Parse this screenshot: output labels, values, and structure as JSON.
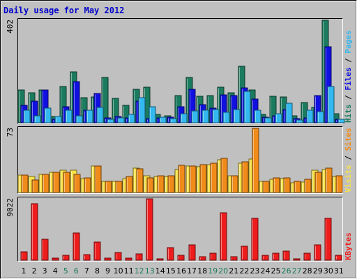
{
  "chart_data": {
    "type": "bar",
    "title": "Daily usage for May 2012",
    "categories": [
      "1",
      "2",
      "3",
      "4",
      "5",
      "6",
      "7",
      "8",
      "9",
      "10",
      "11",
      "12",
      "13",
      "14",
      "15",
      "16",
      "17",
      "18",
      "19",
      "20",
      "21",
      "22",
      "23",
      "24",
      "25",
      "26",
      "27",
      "28",
      "29",
      "30",
      "31"
    ],
    "weekend_days": [
      "5",
      "6",
      "12",
      "13",
      "19",
      "20",
      "26",
      "27"
    ],
    "panels": [
      {
        "name": "hits-files-pages",
        "ymax_label": "402",
        "ylim": [
          0,
          402
        ],
        "series": [
          {
            "name": "Hits",
            "color": "#1b7b5e",
            "values": [
              128,
              118,
              128,
              24,
              142,
              200,
              98,
              102,
              178,
              96,
              68,
              132,
              140,
              34,
              28,
              108,
              178,
              104,
              106,
              140,
              118,
              222,
              128,
              34,
              104,
              100,
              26,
              78,
              60,
              402,
              36
            ]
          },
          {
            "name": "Files",
            "color": "#1010e0",
            "values": [
              68,
              86,
              128,
              14,
              64,
              162,
              48,
              116,
              18,
              24,
              20,
              84,
              16,
              20,
              22,
              62,
              132,
              70,
              58,
              110,
              106,
              136,
              94,
              22,
              26,
              52,
              16,
              18,
              108,
              298,
              14
            ]
          },
          {
            "name": "Pages",
            "color": "#33b8f0",
            "values": [
              50,
              28,
              58,
              24,
              48,
              28,
              48,
              60,
              14,
              18,
              32,
              98,
              62,
              22,
              16,
              36,
              46,
              50,
              52,
              42,
              52,
              124,
              50,
              18,
              36,
              76,
              12,
              50,
              44,
              142,
              14
            ]
          }
        ],
        "right_labels": [
          {
            "text": "Hits",
            "color": "#1b7b5e"
          },
          {
            "text": "Files",
            "color": "#1010e0"
          },
          {
            "text": "Pages",
            "color": "#33b8f0"
          }
        ]
      },
      {
        "name": "visits-sites",
        "ymax_label": "73",
        "ylim": [
          0,
          73
        ],
        "series": [
          {
            "name": "Visits",
            "color": "#f7e24a",
            "values": [
              20,
              18,
              21,
              23,
              25,
              25,
              16,
              30,
              13,
              13,
              16,
              28,
              19,
              18,
              18,
              26,
              30,
              29,
              32,
              37,
              19,
              33,
              38,
              13,
              15,
              16,
              11,
              12,
              25,
              26,
              18
            ]
          },
          {
            "name": "Sites",
            "color": "#f08b1a",
            "values": [
              20,
              14,
              21,
              23,
              23,
              21,
              17,
              30,
              13,
              13,
              18,
              27,
              17,
              19,
              19,
              31,
              30,
              32,
              33,
              39,
              19,
              35,
              73,
              13,
              17,
              17,
              13,
              15,
              23,
              28,
              19
            ]
          }
        ],
        "right_labels": [
          {
            "text": "Visits",
            "color": "#f7e24a"
          },
          {
            "text": "Sites",
            "color": "#f08b1a"
          }
        ]
      },
      {
        "name": "kbytes",
        "ymax_label": "9022",
        "ylim": [
          0,
          9022
        ],
        "series": [
          {
            "name": "KBytes",
            "color": "#ee1c1c",
            "values": [
              1180,
              8350,
              3120,
              260,
              720,
              3970,
              780,
              2690,
              340,
              1170,
              340,
              920,
              9022,
              250,
              1890,
              690,
              2230,
              550,
              1040,
              6930,
              560,
              2040,
              6200,
              720,
              1020,
              1310,
              200,
              1000,
              2300,
              6200,
              760
            ]
          }
        ],
        "right_labels": [
          {
            "text": "KBytes",
            "color": "#ee1c1c"
          }
        ]
      }
    ]
  }
}
